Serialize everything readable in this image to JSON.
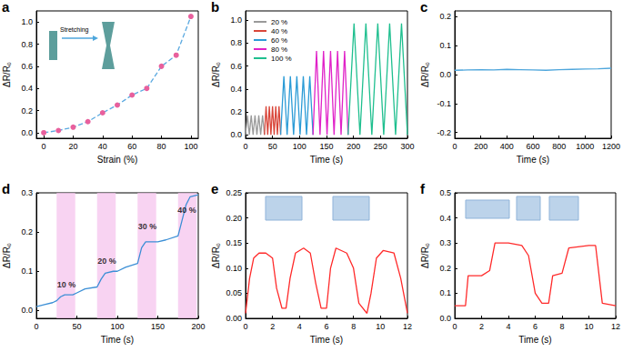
{
  "chart_data": [
    {
      "panel_label": "a",
      "type": "line",
      "x_label": "Strain (%)",
      "y_label": "ΔR/R₀",
      "x": [
        0,
        10,
        20,
        30,
        40,
        50,
        60,
        70,
        80,
        90,
        100
      ],
      "series": [
        {
          "color": "#e8609d",
          "marker": "circle",
          "line_style": "dashed",
          "values": [
            0,
            0.02,
            0.05,
            0.1,
            0.18,
            0.25,
            0.34,
            0.4,
            0.6,
            0.7,
            1.05
          ]
        }
      ],
      "xlim": [
        -5,
        105
      ],
      "xticks": [
        0,
        20,
        40,
        60,
        80,
        100
      ],
      "ylim": [
        -0.05,
        1.1
      ],
      "yticks": [
        {
          "value": 0,
          "label": "0.0"
        },
        0.2,
        0.4,
        0.6,
        0.8,
        {
          "value": 1,
          "label": "1.0"
        }
      ],
      "annotations": [
        "Stretching"
      ]
    },
    {
      "panel_label": "b",
      "type": "line",
      "x_label": "Time (s)",
      "y_label": "ΔR/R₀",
      "legend": "upper left",
      "series": [
        {
          "name": "20 %",
          "color": "#9a9a9a",
          "line_style": "solid",
          "x": [
            0,
            3.5,
            7,
            10.5,
            14,
            17.5,
            21,
            24.5,
            28,
            31.5,
            35
          ],
          "values": [
            0,
            0.17,
            0,
            0.17,
            0,
            0.17,
            0,
            0.17,
            0,
            0.17,
            0
          ]
        },
        {
          "name": "40 %",
          "color": "#d9463a",
          "line_style": "solid",
          "x": [
            35,
            38,
            41,
            44,
            47,
            50,
            53,
            56,
            59,
            62,
            65
          ],
          "values": [
            0,
            0.25,
            0,
            0.25,
            0,
            0.25,
            0,
            0.25,
            0,
            0.25,
            0
          ]
        },
        {
          "name": "60 %",
          "color": "#2b9bd6",
          "line_style": "solid",
          "x": [
            65,
            71,
            77,
            83,
            89,
            95,
            101,
            107,
            113,
            119,
            125
          ],
          "values": [
            0,
            0.51,
            0,
            0.51,
            0,
            0.51,
            0,
            0.51,
            0,
            0.51,
            0
          ]
        },
        {
          "name": "80 %",
          "color": "#e022c8",
          "line_style": "solid",
          "x": [
            125,
            131.5,
            138,
            144.5,
            151,
            157.5,
            164,
            170.5,
            177,
            183.5,
            190
          ],
          "values": [
            0,
            0.73,
            0,
            0.73,
            0,
            0.73,
            0,
            0.73,
            0,
            0.73,
            0
          ]
        },
        {
          "name": "100 %",
          "color": "#1fbf8f",
          "line_style": "solid",
          "x": [
            190,
            201,
            212,
            223,
            234,
            245,
            256,
            267,
            278,
            289,
            300
          ],
          "values": [
            0,
            0.97,
            0,
            0.97,
            0,
            0.97,
            0,
            0.97,
            0,
            0.97,
            0
          ]
        }
      ],
      "xlim": [
        0,
        300
      ],
      "xticks": [
        0,
        50,
        100,
        150,
        200,
        250,
        300
      ],
      "ylim": [
        -0.03,
        1.08
      ],
      "yticks": [
        {
          "value": 0,
          "label": "0.0"
        },
        0.2,
        0.4,
        0.6,
        0.8,
        {
          "value": 1,
          "label": "1.0"
        }
      ]
    },
    {
      "panel_label": "c",
      "type": "line",
      "x_label": "Time (s)",
      "y_label": "ΔR/R₀",
      "x": [
        0,
        100,
        200,
        300,
        400,
        500,
        600,
        700,
        800,
        900,
        1000,
        1100,
        1200
      ],
      "series": [
        {
          "color": "#4ea6dc",
          "line_style": "solid",
          "values": [
            0.015,
            0.016,
            0.017,
            0.016,
            0.018,
            0.017,
            0.016,
            0.015,
            0.017,
            0.018,
            0.019,
            0.02,
            0.022
          ]
        }
      ],
      "xlim": [
        0,
        1200
      ],
      "xticks": [
        0,
        200,
        400,
        600,
        800,
        1000,
        1200
      ],
      "ylim": [
        -0.22,
        0.22
      ],
      "yticks": [
        -0.2,
        -0.1,
        {
          "value": 0,
          "label": "0.0"
        },
        0.1,
        0.2
      ]
    },
    {
      "panel_label": "d",
      "type": "line",
      "x_label": "Time (s)",
      "y_label": "ΔR/R₀",
      "x": [
        0,
        10,
        20,
        25,
        30,
        35,
        45,
        50,
        60,
        75,
        80,
        85,
        95,
        100,
        110,
        125,
        130,
        135,
        150,
        160,
        175,
        180,
        185,
        190,
        200
      ],
      "series": [
        {
          "color": "#3c8fd6",
          "line_style": "solid",
          "values": [
            0.01,
            0.015,
            0.02,
            0.025,
            0.035,
            0.04,
            0.04,
            0.045,
            0.055,
            0.06,
            0.08,
            0.095,
            0.1,
            0.1,
            0.11,
            0.12,
            0.16,
            0.175,
            0.175,
            0.18,
            0.19,
            0.23,
            0.27,
            0.29,
            0.295
          ]
        }
      ],
      "shaded_ranges": [
        [
          25,
          48
        ],
        [
          75,
          98
        ],
        [
          125,
          148
        ],
        [
          175,
          198
        ]
      ],
      "annotations": [
        {
          "text": "10 %",
          "x": 37,
          "y": 0.065
        },
        {
          "text": "20 %",
          "x": 87,
          "y": 0.125
        },
        {
          "text": "30 %",
          "x": 137,
          "y": 0.215
        },
        {
          "text": "40 %",
          "x": 186,
          "y": 0.255
        }
      ],
      "xlim": [
        0,
        200
      ],
      "xticks": [
        0,
        50,
        100,
        150,
        200
      ],
      "ylim": [
        -0.02,
        0.3
      ],
      "yticks": [
        {
          "value": 0,
          "label": "0.0"
        },
        0.1,
        0.2,
        0.3
      ]
    },
    {
      "panel_label": "e",
      "type": "line",
      "x_label": "Time (s)",
      "y_label": "ΔR/R₀",
      "x": [
        0,
        0.3,
        0.6,
        1,
        1.5,
        2,
        2.3,
        2.7,
        3,
        3.3,
        3.7,
        4.3,
        4.8,
        5.2,
        5.6,
        6,
        6.3,
        6.7,
        7.5,
        8,
        8.4,
        9,
        9.3,
        9.7,
        10.2,
        11,
        11.5,
        12
      ],
      "series": [
        {
          "color": "#ff2a2a",
          "line_style": "solid",
          "values": [
            0.01,
            0.08,
            0.12,
            0.13,
            0.13,
            0.12,
            0.06,
            0.02,
            0.02,
            0.08,
            0.13,
            0.14,
            0.13,
            0.07,
            0.02,
            0.02,
            0.1,
            0.14,
            0.13,
            0.1,
            0.03,
            0.01,
            0.05,
            0.12,
            0.135,
            0.13,
            0.08,
            0.01
          ]
        }
      ],
      "xlim": [
        0,
        12
      ],
      "xticks": [
        0,
        2,
        4,
        6,
        8,
        10,
        12
      ],
      "ylim": [
        0,
        0.25
      ],
      "yticks": [
        {
          "value": 0,
          "label": "0.00"
        },
        0.05,
        {
          "value": 0.1,
          "label": "0.10"
        },
        0.15,
        {
          "value": 0.2,
          "label": "0.20"
        },
        0.25
      ]
    },
    {
      "panel_label": "f",
      "type": "line",
      "x_label": "Time (s)",
      "y_label": "ΔR/R₀",
      "x": [
        0,
        0.8,
        1,
        2,
        2.6,
        3,
        4,
        5,
        5.5,
        6,
        6.5,
        7,
        7.3,
        8,
        8.5,
        10,
        10.5,
        11,
        12
      ],
      "series": [
        {
          "color": "#ff2a2a",
          "line_style": "solid",
          "values": [
            0.05,
            0.05,
            0.17,
            0.17,
            0.19,
            0.3,
            0.3,
            0.29,
            0.25,
            0.1,
            0.06,
            0.06,
            0.17,
            0.18,
            0.28,
            0.29,
            0.29,
            0.06,
            0.05
          ]
        }
      ],
      "xlim": [
        0,
        12
      ],
      "xticks": [
        0,
        2,
        4,
        6,
        8,
        10,
        12
      ],
      "ylim": [
        0,
        0.5
      ],
      "yticks": [
        {
          "value": 0,
          "label": "0.0"
        },
        0.1,
        0.2,
        0.3,
        0.4,
        0.5
      ]
    }
  ]
}
